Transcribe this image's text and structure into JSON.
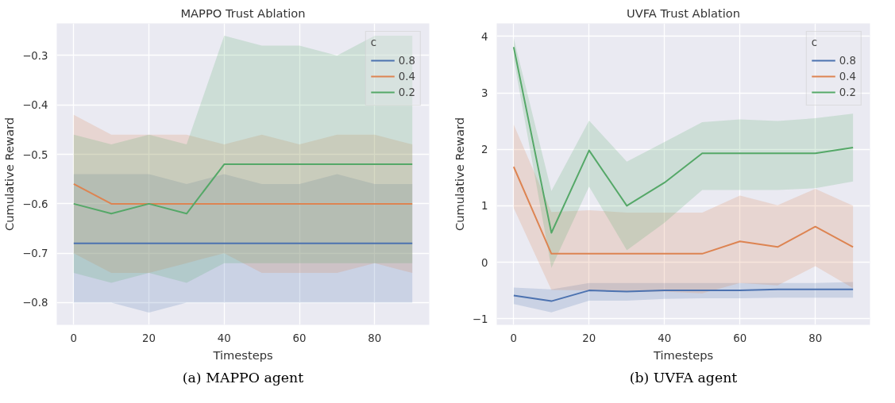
{
  "chart_data": [
    {
      "type": "line",
      "title": "MAPPO Trust Ablation",
      "xlabel": "Timesteps",
      "ylabel": "Cumulative Reward",
      "legend_title": "c",
      "legend": "top right",
      "grid": true,
      "x": [
        0,
        10,
        20,
        30,
        40,
        50,
        60,
        70,
        80,
        90
      ],
      "xlim": [
        -4.5,
        94.5
      ],
      "xticks": [
        0,
        20,
        40,
        60,
        80
      ],
      "ylim": [
        -0.845,
        -0.235
      ],
      "yticks": [
        -0.8,
        -0.7,
        -0.6,
        -0.5,
        -0.4,
        -0.3
      ],
      "series": [
        {
          "name": "0.8",
          "color": "#4c72b0",
          "values": [
            -0.68,
            -0.68,
            -0.68,
            -0.68,
            -0.68,
            -0.68,
            -0.68,
            -0.68,
            -0.68,
            -0.68
          ],
          "upper": [
            -0.54,
            -0.54,
            -0.54,
            -0.56,
            -0.54,
            -0.56,
            -0.56,
            -0.54,
            -0.56,
            -0.56
          ],
          "lower": [
            -0.8,
            -0.8,
            -0.82,
            -0.8,
            -0.8,
            -0.8,
            -0.8,
            -0.8,
            -0.8,
            -0.8
          ]
        },
        {
          "name": "0.4",
          "color": "#dd8452",
          "values": [
            -0.56,
            -0.6,
            -0.6,
            -0.6,
            -0.6,
            -0.6,
            -0.6,
            -0.6,
            -0.6,
            -0.6
          ],
          "upper": [
            -0.42,
            -0.46,
            -0.46,
            -0.46,
            -0.48,
            -0.46,
            -0.48,
            -0.46,
            -0.46,
            -0.48
          ],
          "lower": [
            -0.7,
            -0.74,
            -0.74,
            -0.72,
            -0.7,
            -0.74,
            -0.74,
            -0.74,
            -0.72,
            -0.74
          ]
        },
        {
          "name": "0.2",
          "color": "#55a868",
          "values": [
            -0.6,
            -0.62,
            -0.6,
            -0.62,
            -0.52,
            -0.52,
            -0.52,
            -0.52,
            -0.52,
            -0.52
          ],
          "upper": [
            -0.46,
            -0.48,
            -0.46,
            -0.48,
            -0.26,
            -0.28,
            -0.28,
            -0.3,
            -0.26,
            -0.26
          ],
          "lower": [
            -0.74,
            -0.76,
            -0.74,
            -0.76,
            -0.72,
            -0.72,
            -0.72,
            -0.72,
            -0.72,
            -0.72
          ]
        }
      ],
      "annotations": [
        "(a) MAPPO agent"
      ]
    },
    {
      "type": "line",
      "title": "UVFA Trust Ablation",
      "xlabel": "Timesteps",
      "ylabel": "Cumulative Reward",
      "legend_title": "c",
      "legend": "top right",
      "grid": true,
      "x": [
        0,
        10,
        20,
        30,
        40,
        50,
        60,
        70,
        80,
        90
      ],
      "xlim": [
        -4.5,
        94.5
      ],
      "xticks": [
        0,
        20,
        40,
        60,
        80
      ],
      "ylim": [
        -1.11,
        4.23
      ],
      "yticks": [
        -1,
        0,
        1,
        2,
        3,
        4
      ],
      "series": [
        {
          "name": "0.8",
          "color": "#4c72b0",
          "values": [
            -0.59,
            -0.69,
            -0.5,
            -0.52,
            -0.5,
            -0.5,
            -0.5,
            -0.48,
            -0.48,
            -0.48
          ],
          "upper": [
            -0.45,
            -0.48,
            -0.37,
            -0.37,
            -0.37,
            -0.37,
            -0.37,
            -0.37,
            -0.37,
            -0.35
          ],
          "lower": [
            -0.74,
            -0.89,
            -0.68,
            -0.68,
            -0.65,
            -0.64,
            -0.64,
            -0.63,
            -0.63,
            -0.63
          ]
        },
        {
          "name": "0.4",
          "color": "#dd8452",
          "values": [
            1.69,
            0.15,
            0.15,
            0.15,
            0.15,
            0.15,
            0.37,
            0.27,
            0.63,
            0.27
          ],
          "upper": [
            2.44,
            0.89,
            0.92,
            0.88,
            0.88,
            0.88,
            1.18,
            1.01,
            1.3,
            1.0
          ],
          "lower": [
            0.96,
            -0.49,
            -0.5,
            -0.52,
            -0.52,
            -0.55,
            -0.37,
            -0.41,
            -0.07,
            -0.46
          ]
        },
        {
          "name": "0.2",
          "color": "#55a868",
          "values": [
            3.81,
            0.52,
            1.98,
            1.0,
            1.41,
            1.93,
            1.93,
            1.93,
            1.93,
            2.03
          ],
          "upper": [
            3.97,
            1.26,
            2.51,
            1.78,
            2.13,
            2.48,
            2.53,
            2.5,
            2.55,
            2.63
          ],
          "lower": [
            3.6,
            -0.1,
            1.34,
            0.21,
            0.7,
            1.28,
            1.28,
            1.28,
            1.31,
            1.43
          ]
        }
      ],
      "annotations": [
        "(b) UVFA agent"
      ]
    }
  ]
}
